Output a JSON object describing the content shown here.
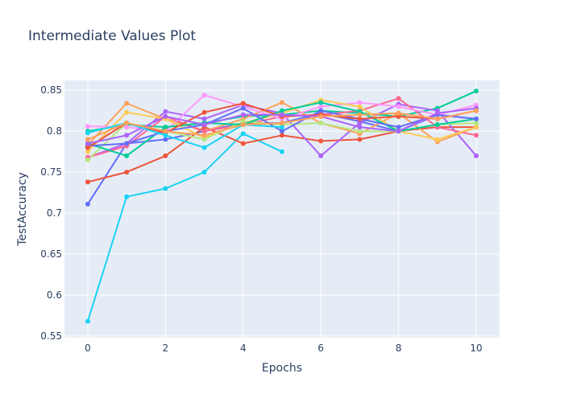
{
  "chart_data": {
    "type": "line",
    "title": "Intermediate Values Plot",
    "xlabel": "Epochs",
    "ylabel": "TestAccuracy",
    "xlim": [
      -0.6,
      10.6
    ],
    "ylim": [
      0.548,
      0.862
    ],
    "xticks": [
      0,
      2,
      4,
      6,
      8,
      10
    ],
    "yticks": [
      0.55,
      0.6,
      0.65,
      0.7,
      0.75,
      0.8,
      0.85
    ],
    "ytick_labels": [
      "0.55",
      "0.6",
      "0.65",
      "0.7",
      "0.75",
      "0.8",
      "0.85"
    ],
    "grid": true,
    "legend": false,
    "x": [
      0,
      1,
      2,
      3,
      4,
      5,
      6,
      7,
      8,
      9,
      10
    ],
    "series": [
      {
        "color": "#00cc96",
        "values": [
          0.8,
          0.808,
          0.805,
          0.81,
          0.818,
          0.82,
          0.825,
          0.822,
          0.818,
          0.828,
          0.849
        ]
      },
      {
        "color": "#19d3f3",
        "values": [
          0.568,
          0.72,
          0.73,
          0.75,
          0.797,
          0.775,
          null,
          null,
          null,
          null,
          null
        ]
      },
      {
        "color": "#636efa",
        "values": [
          0.711,
          0.785,
          0.79,
          0.8,
          0.81,
          0.81,
          0.822,
          0.812,
          0.8,
          0.82,
          0.815
        ]
      },
      {
        "color": "#ef553b",
        "values": [
          0.738,
          0.75,
          0.77,
          0.805,
          0.785,
          0.795,
          0.788,
          0.79,
          0.8,
          0.805,
          0.805
        ]
      },
      {
        "color": "#ab63fa",
        "values": [
          0.768,
          0.785,
          0.824,
          0.815,
          0.832,
          0.822,
          0.77,
          0.81,
          0.833,
          0.825,
          0.77
        ]
      },
      {
        "color": "#ffa15a",
        "values": [
          0.783,
          0.834,
          0.815,
          0.8,
          0.815,
          0.835,
          0.81,
          0.797,
          0.822,
          0.787,
          0.805
        ]
      },
      {
        "color": "#ff6692",
        "values": [
          0.768,
          0.782,
          0.818,
          0.8,
          0.808,
          0.818,
          0.82,
          0.825,
          0.84,
          0.805,
          0.795
        ]
      },
      {
        "color": "#ff97ff",
        "values": [
          0.806,
          0.805,
          0.8,
          0.844,
          0.83,
          0.815,
          0.83,
          0.835,
          0.83,
          0.82,
          0.832
        ]
      },
      {
        "color": "#fecb52",
        "values": [
          0.775,
          0.823,
          0.815,
          0.792,
          0.81,
          0.822,
          0.838,
          0.83,
          0.8,
          0.79,
          0.805
        ]
      },
      {
        "color": "#b6e880",
        "values": [
          0.765,
          0.81,
          0.8,
          0.79,
          0.812,
          0.808,
          0.81,
          0.8,
          0.8,
          0.808,
          0.81
        ]
      },
      {
        "color": "#00cc96",
        "values": [
          0.785,
          0.77,
          0.805,
          0.81,
          0.808,
          0.825,
          0.835,
          0.824,
          0.8,
          0.808,
          0.815
        ]
      },
      {
        "color": "#636efa",
        "values": [
          0.782,
          0.785,
          0.8,
          0.808,
          0.828,
          0.8,
          0.825,
          0.815,
          0.805,
          0.82,
          0.815
        ]
      },
      {
        "color": "#ef553b",
        "values": [
          0.78,
          0.81,
          0.798,
          0.823,
          0.834,
          0.818,
          0.82,
          0.815,
          0.818,
          0.815,
          0.825
        ]
      },
      {
        "color": "#ab63fa",
        "values": [
          0.785,
          0.795,
          0.818,
          0.808,
          0.82,
          0.82,
          0.818,
          0.805,
          0.8,
          0.822,
          0.828
        ]
      },
      {
        "color": "#19d3f3",
        "values": [
          0.798,
          0.81,
          0.795,
          0.78,
          0.808,
          0.805,
          null,
          null,
          null,
          null,
          null
        ]
      },
      {
        "color": "#ffa15a",
        "values": [
          0.79,
          0.81,
          0.8,
          0.795,
          0.808,
          0.81,
          0.818,
          0.82,
          0.822,
          0.815,
          0.825
        ]
      }
    ]
  }
}
